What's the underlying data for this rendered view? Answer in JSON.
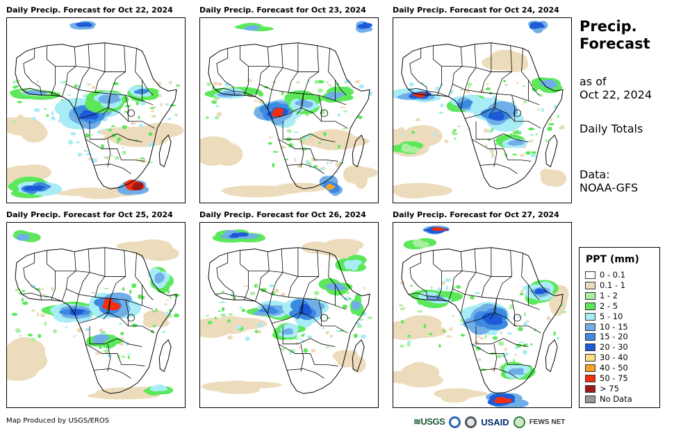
{
  "panels": [
    {
      "title": "Daily Precip. Forecast for Oct 22, 2024"
    },
    {
      "title": "Daily Precip. Forecast for Oct 23, 2024"
    },
    {
      "title": "Daily Precip. Forecast for Oct 24, 2024"
    },
    {
      "title": "Daily Precip. Forecast for Oct 25, 2024"
    },
    {
      "title": "Daily Precip. Forecast for Oct 26, 2024"
    },
    {
      "title": "Daily Precip. Forecast for Oct 27, 2024"
    }
  ],
  "sidebar": {
    "heading_line1": "Precip.",
    "heading_line2": "Forecast",
    "asof_line1": "as of",
    "asof_line2": "Oct 22, 2024",
    "totals": "Daily Totals",
    "data_line1": "Data:",
    "data_line2": "NOAA-GFS"
  },
  "legend": {
    "title": "PPT (mm)",
    "items": [
      {
        "label": "0 - 0.1",
        "color": "#ffffff"
      },
      {
        "label": "0.1 - 1",
        "color": "#ecdcbc"
      },
      {
        "label": "1 - 2",
        "color": "#a8f0a0"
      },
      {
        "label": "2 - 5",
        "color": "#5ce85a"
      },
      {
        "label": "5 - 10",
        "color": "#a8ecf6"
      },
      {
        "label": "10 - 15",
        "color": "#70aee8"
      },
      {
        "label": "15 - 20",
        "color": "#3c8ae0"
      },
      {
        "label": "20 - 30",
        "color": "#1c5ad8"
      },
      {
        "label": "30 - 40",
        "color": "#fce080"
      },
      {
        "label": "40 - 50",
        "color": "#f8a020"
      },
      {
        "label": "50 - 75",
        "color": "#f03010"
      },
      {
        "label": "> 75",
        "color": "#a01818"
      },
      {
        "label": "No Data",
        "color": "#999999"
      }
    ]
  },
  "footer": {
    "credit": "Map Produced by USGS/EROS",
    "logo_usgs": "≋USGS",
    "logo_usaid": "USAID",
    "logo_fews": "FEWS NET"
  }
}
